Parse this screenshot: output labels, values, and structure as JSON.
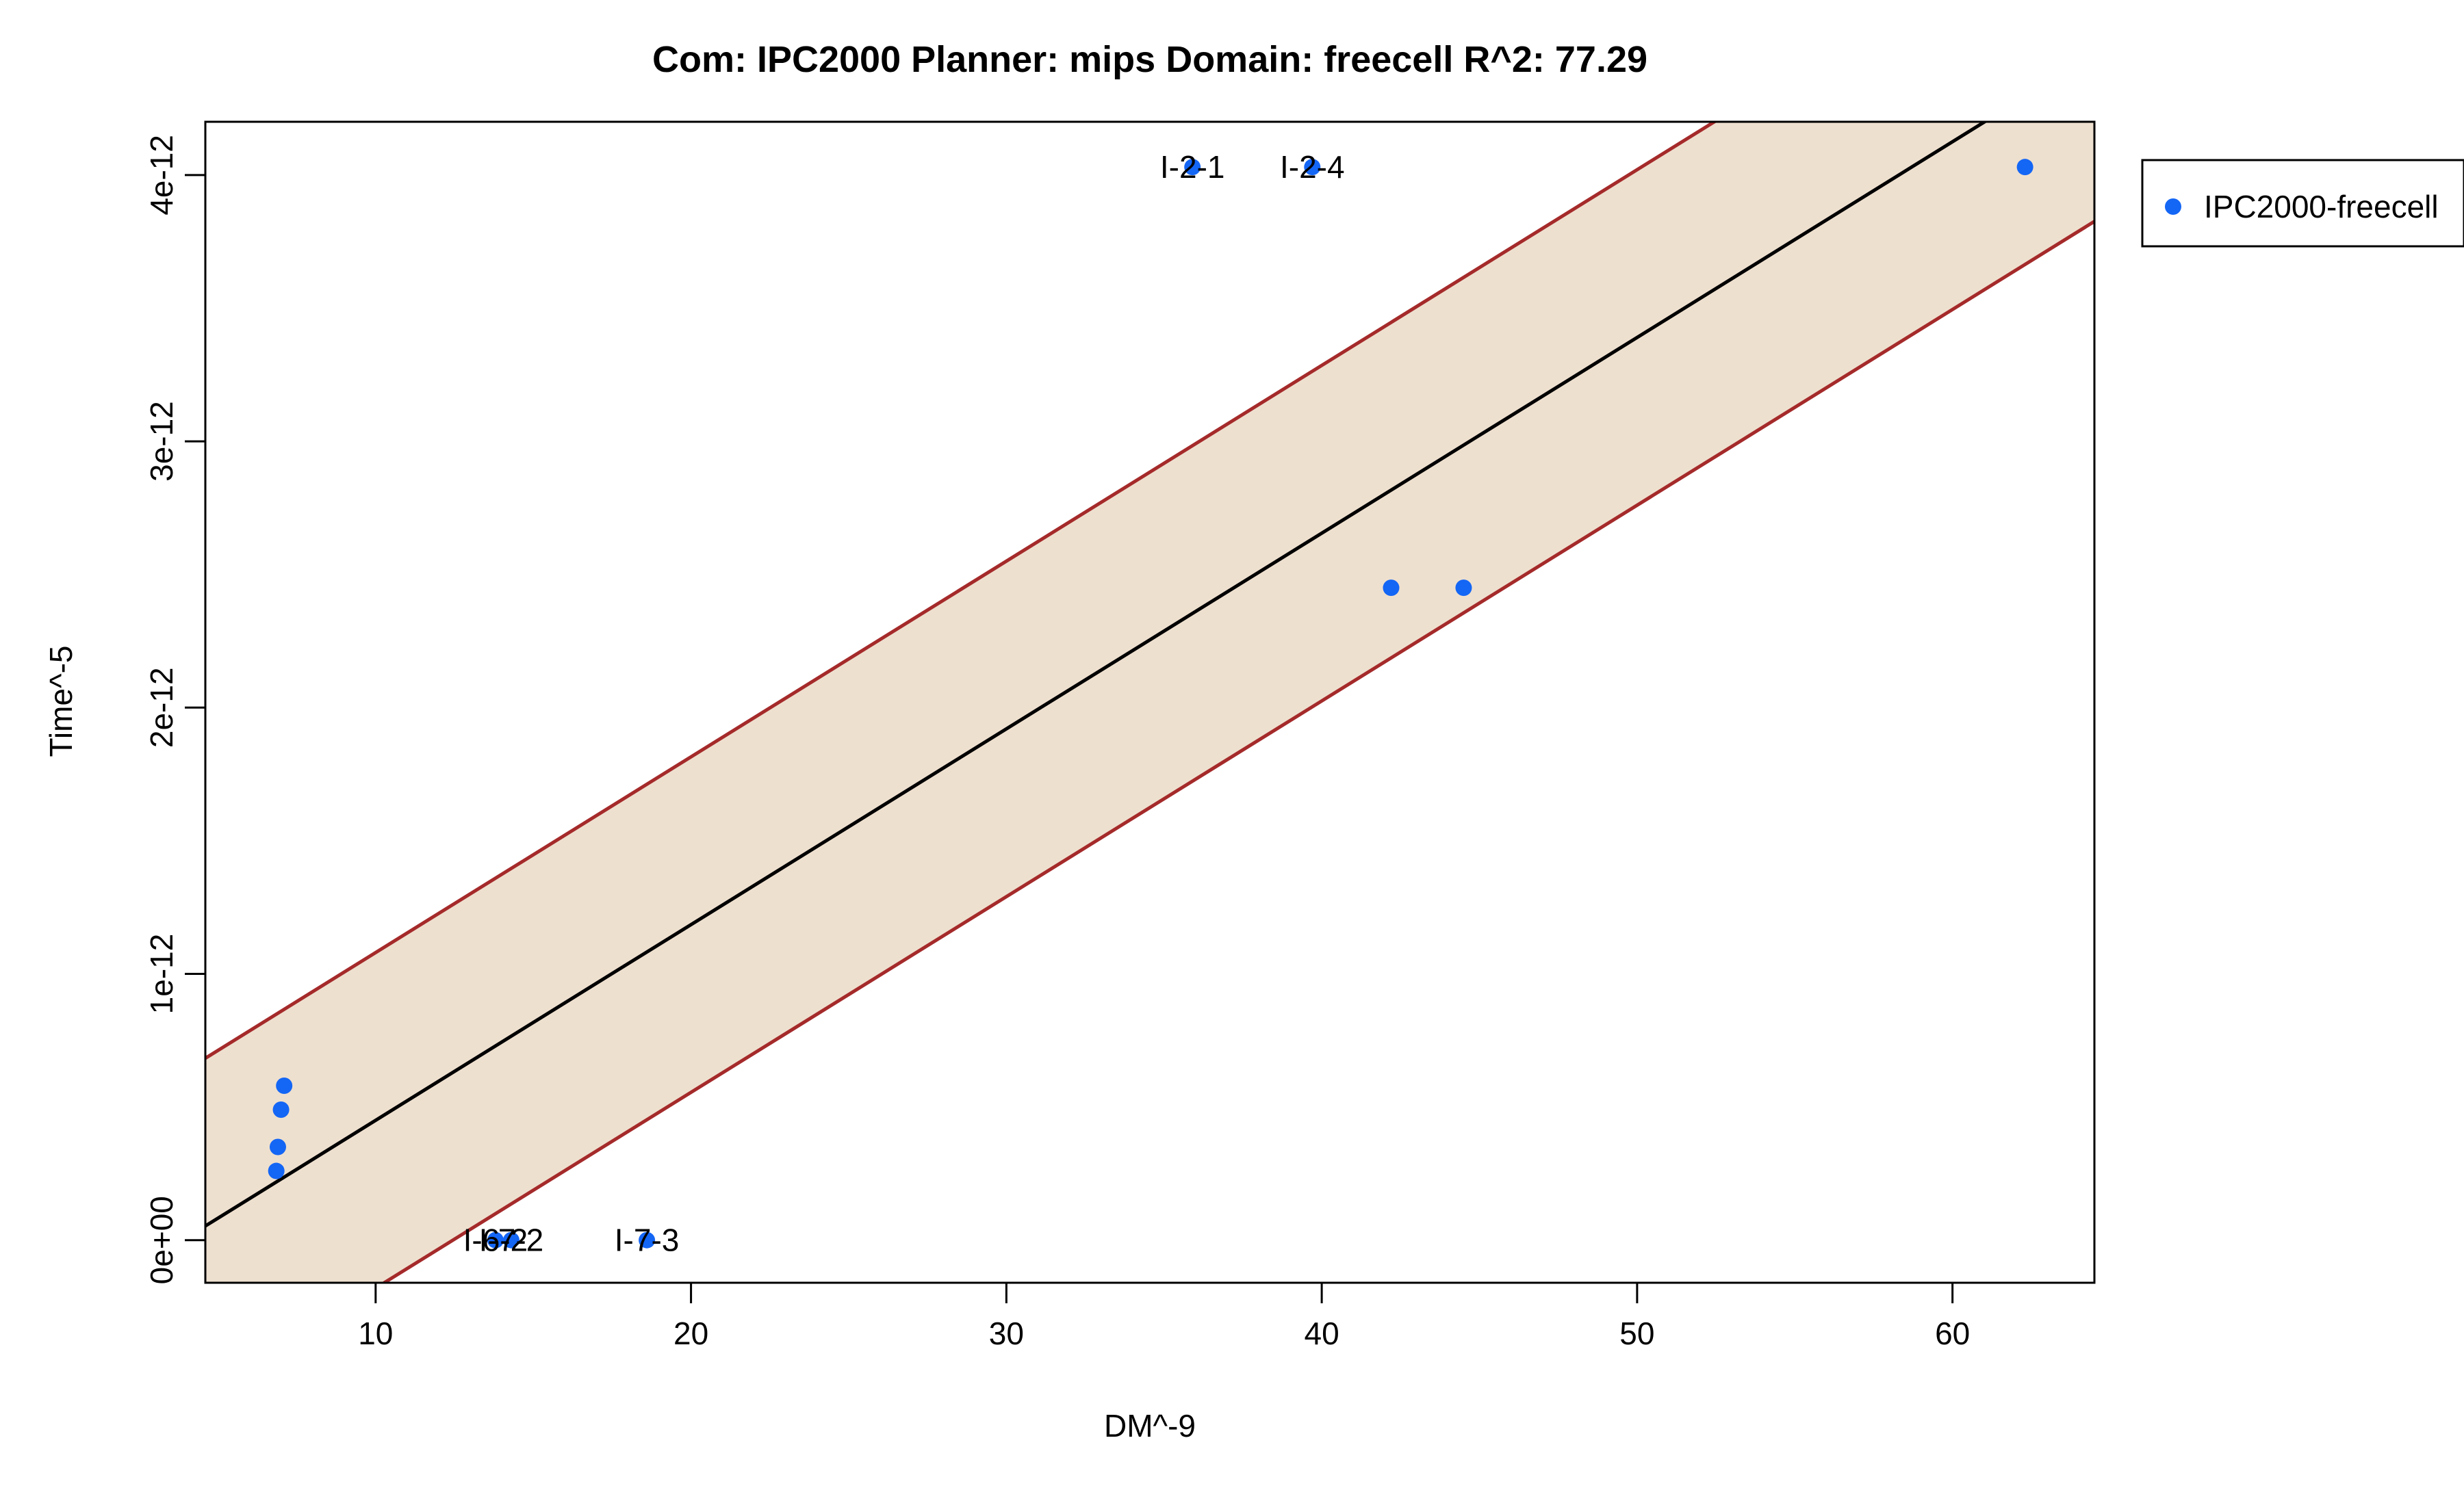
{
  "chart_data": {
    "type": "scatter",
    "title": "Com: IPC2000 Planner: mips Domain: freecell R^2: 77.29",
    "xlabel": "DM^-9",
    "ylabel": "Time^-5",
    "xlim": [
      4.6,
      64.5
    ],
    "ylim": [
      -1.6e-13,
      4.2e-12
    ],
    "x_ticks": [
      10,
      20,
      30,
      40,
      50,
      60
    ],
    "x_tick_labels": [
      "10",
      "20",
      "30",
      "40",
      "50",
      "60"
    ],
    "y_ticks": [
      0,
      1e-12,
      2e-12,
      3e-12,
      4e-12
    ],
    "y_tick_labels": [
      "0e+00",
      "1e-12",
      "2e-12",
      "3e-12",
      "4e-12"
    ],
    "grid": false,
    "legend": {
      "position": "right",
      "entries": [
        "IPC2000-freecell"
      ]
    },
    "series": [
      {
        "name": "IPC2000-freecell",
        "color": "#1466f5",
        "points": [
          {
            "x": 7.1,
            "y": 5.8e-13
          },
          {
            "x": 7.0,
            "y": 4.9e-13
          },
          {
            "x": 6.9,
            "y": 3.5e-13
          },
          {
            "x": 6.85,
            "y": 2.6e-13
          },
          {
            "x": 13.8,
            "y": 0
          },
          {
            "x": 14.3,
            "y": 0
          },
          {
            "x": 18.6,
            "y": 0
          },
          {
            "x": 35.9,
            "y": 4.03e-12
          },
          {
            "x": 39.7,
            "y": 4.03e-12
          },
          {
            "x": 42.2,
            "y": 2.45e-12
          },
          {
            "x": 44.5,
            "y": 2.45e-12
          },
          {
            "x": 62.3,
            "y": 4.03e-12
          }
        ]
      }
    ],
    "annotations": [
      {
        "text": "I-2-1",
        "x": 35.9,
        "y": 4.03e-12
      },
      {
        "text": "I-2-4",
        "x": 39.7,
        "y": 4.03e-12
      },
      {
        "text": "I-6-2",
        "x": 13.8,
        "y": 0
      },
      {
        "text": "I-7-2",
        "x": 14.3,
        "y": 0
      },
      {
        "text": "I-7-3",
        "x": 18.6,
        "y": 0
      }
    ],
    "fit_line": {
      "intercept": -2.85e-13,
      "slope": 7.35e-14,
      "color": "#000000"
    },
    "interval_band": {
      "upper_intercept": 3.45e-13,
      "lower_intercept": -9.15e-13,
      "slope": 7.35e-14,
      "fill": "#eee0cf",
      "line_color": "#a52a2a"
    }
  }
}
